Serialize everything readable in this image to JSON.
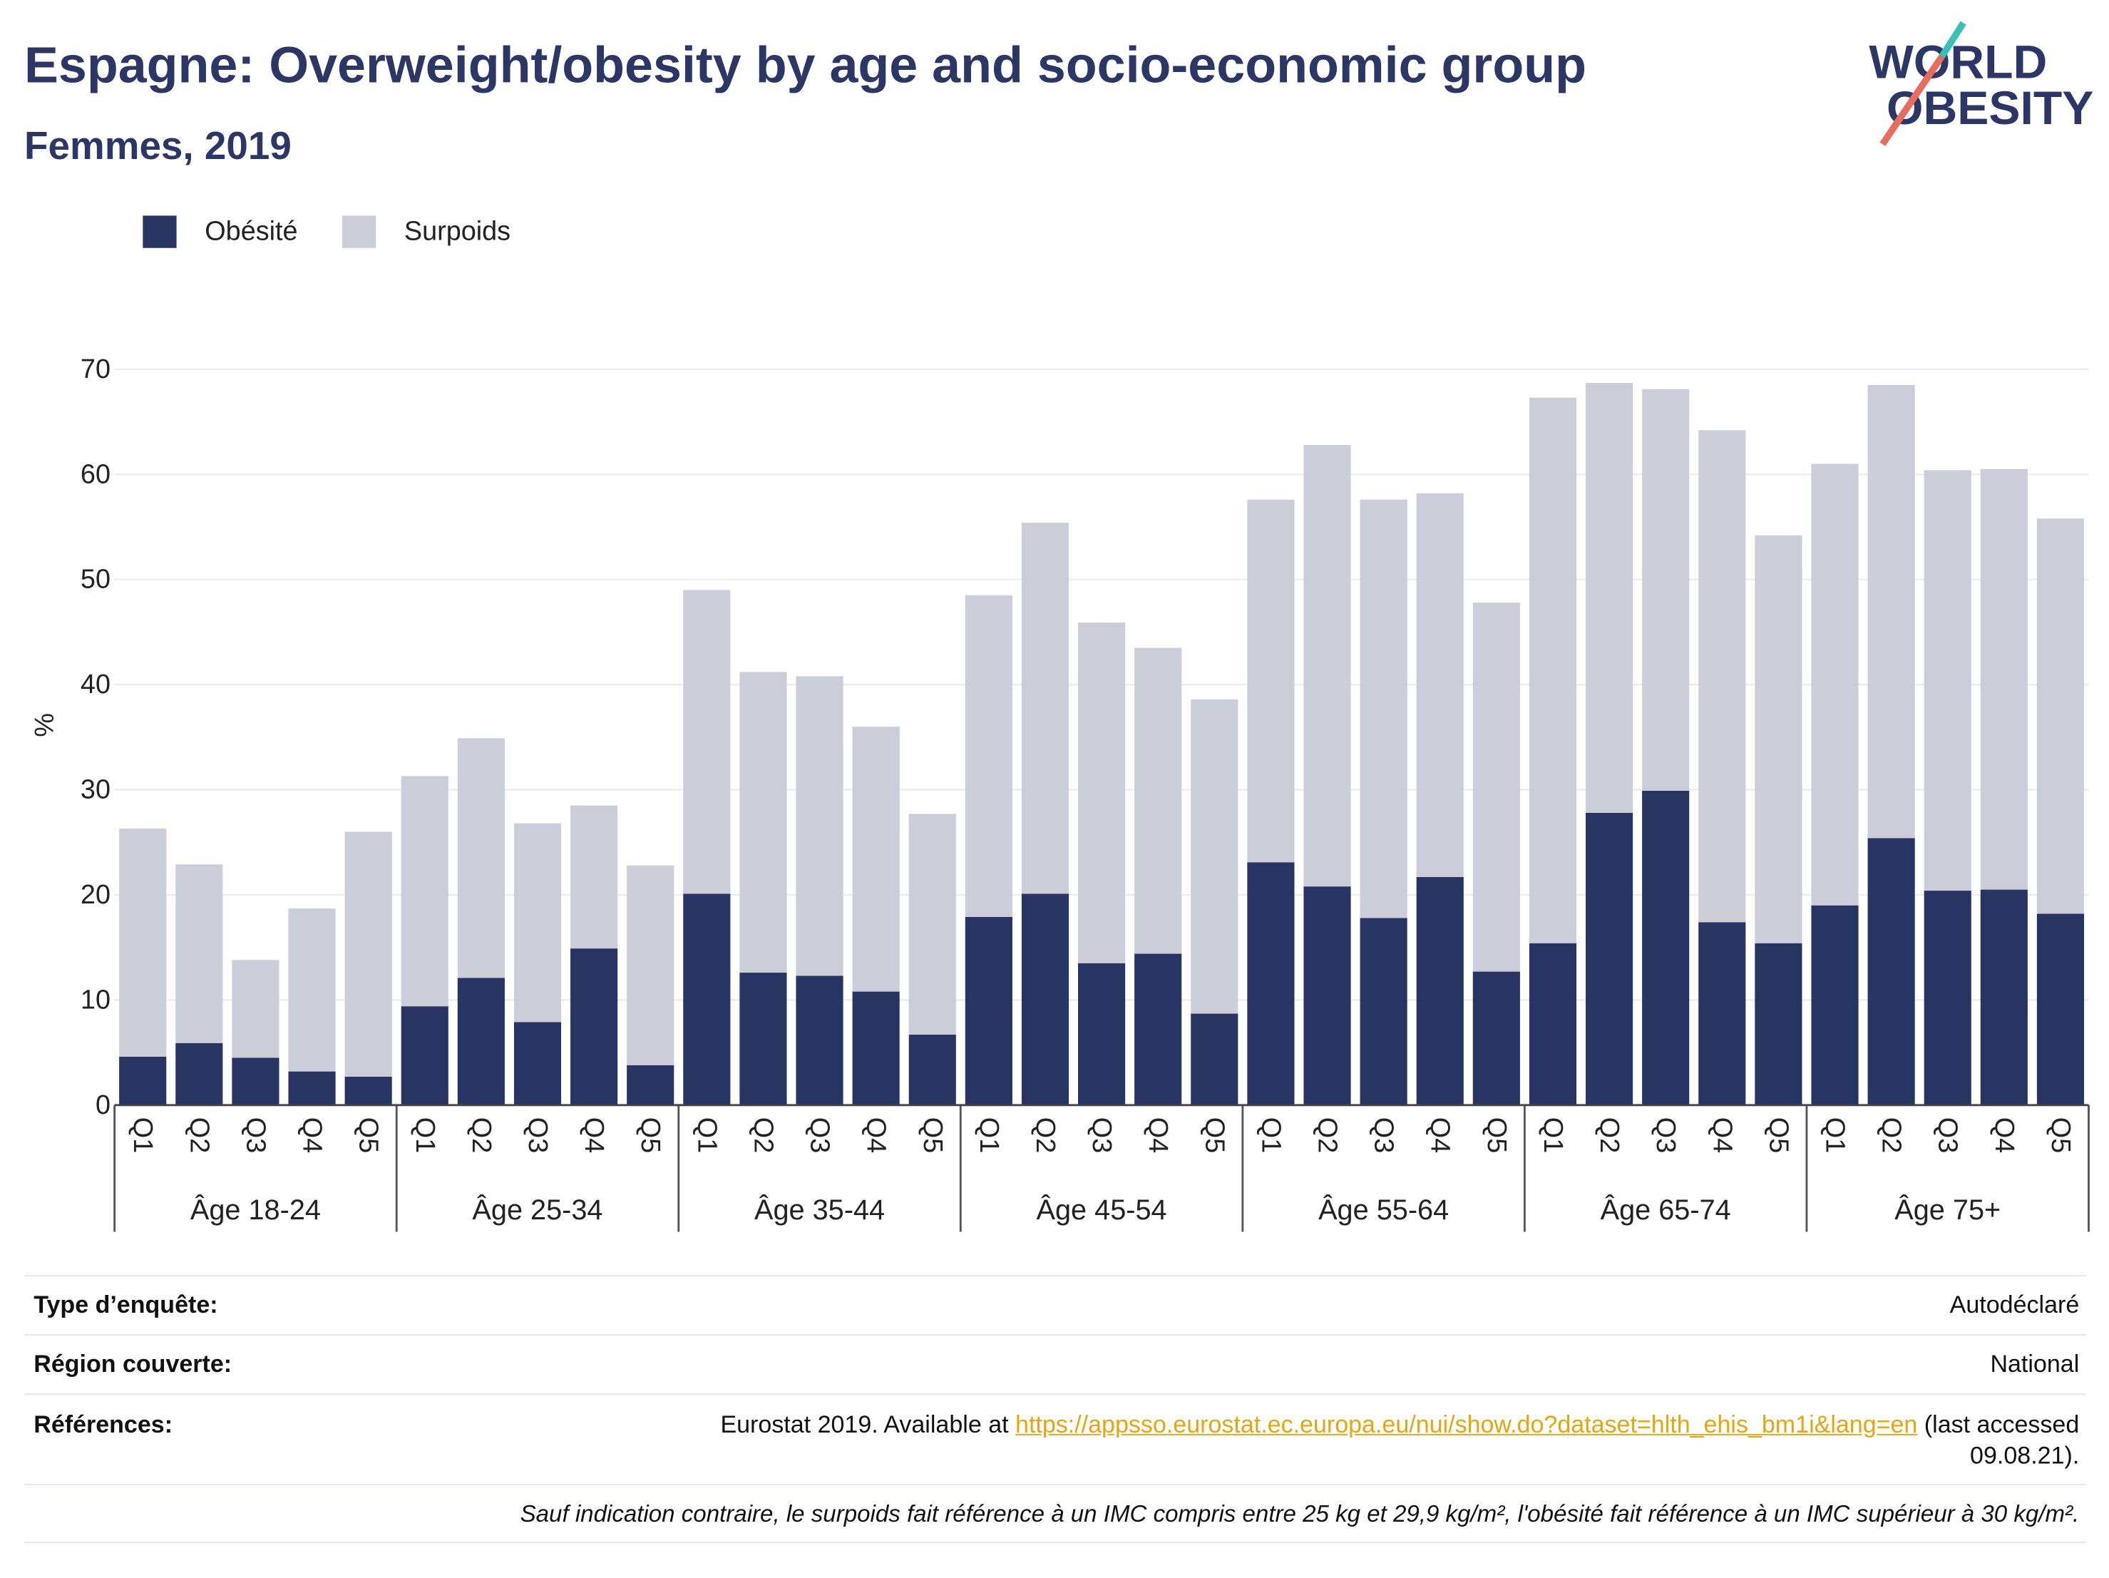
{
  "title": "Espagne: Overweight/obesity by age and socio-economic group",
  "subtitle": "Femmes, 2019",
  "logo": {
    "line1": "WORLD",
    "line2": "OBESITY"
  },
  "colors": {
    "title": "#2c3765",
    "link": "#e6a512",
    "logo_teal": "#3cbfb4",
    "logo_coral": "#e86d5e"
  },
  "chart_data": {
    "type": "bar",
    "stacked": true,
    "ylabel": "%",
    "ylim": [
      0,
      70
    ],
    "yticks": [
      0,
      10,
      20,
      30,
      40,
      50,
      60,
      70
    ],
    "grid": true,
    "legend_position": "top-left",
    "groups": [
      "Âge 18-24",
      "Âge 25-34",
      "Âge 35-44",
      "Âge 45-54",
      "Âge 55-64",
      "Âge 65-74",
      "Âge 75+"
    ],
    "categories": [
      "Q1",
      "Q2",
      "Q3",
      "Q4",
      "Q5"
    ],
    "series": [
      {
        "name": "Obésité",
        "color": "#283461",
        "values": [
          [
            4.6,
            5.9,
            4.5,
            3.2,
            2.7
          ],
          [
            9.4,
            12.1,
            7.9,
            14.9,
            3.8
          ],
          [
            20.1,
            12.6,
            12.3,
            10.8,
            6.7
          ],
          [
            17.9,
            20.1,
            13.5,
            14.4,
            8.7
          ],
          [
            23.1,
            20.8,
            17.8,
            21.7,
            12.7
          ],
          [
            15.4,
            27.8,
            29.9,
            17.4,
            15.4
          ],
          [
            19.0,
            25.4,
            20.4,
            20.5,
            18.2
          ]
        ]
      },
      {
        "name": "Surpoids",
        "color": "#cbcdd9",
        "values": [
          [
            21.7,
            17.0,
            9.3,
            15.5,
            23.3
          ],
          [
            21.9,
            22.8,
            18.9,
            13.6,
            19.0
          ],
          [
            28.9,
            28.6,
            28.5,
            25.2,
            21.0
          ],
          [
            30.6,
            35.3,
            32.4,
            29.1,
            29.9
          ],
          [
            34.5,
            42.0,
            39.8,
            36.5,
            35.1
          ],
          [
            51.9,
            40.9,
            38.2,
            46.8,
            38.8
          ],
          [
            42.0,
            43.1,
            40.0,
            40.0,
            37.6
          ]
        ]
      }
    ]
  },
  "info": {
    "survey_type": {
      "label": "Type d’enquête:",
      "value": "Autodéclaré"
    },
    "region": {
      "label": "Région couverte:",
      "value": "National"
    },
    "references": {
      "label": "Références:",
      "prefix": "Eurostat 2019. Available at ",
      "link": "https://appsso.eurostat.ec.europa.eu/nui/show.do?dataset=hlth_ehis_bm1i&lang=en",
      "suffix_line1": " (last accessed",
      "suffix_line2": "09.08.21)."
    },
    "footnote": "Sauf indication contraire, le surpoids fait référence à un IMC compris entre 25 kg et 29,9 kg/m², l'obésité fait référence à un IMC supérieur à 30 kg/m²."
  }
}
